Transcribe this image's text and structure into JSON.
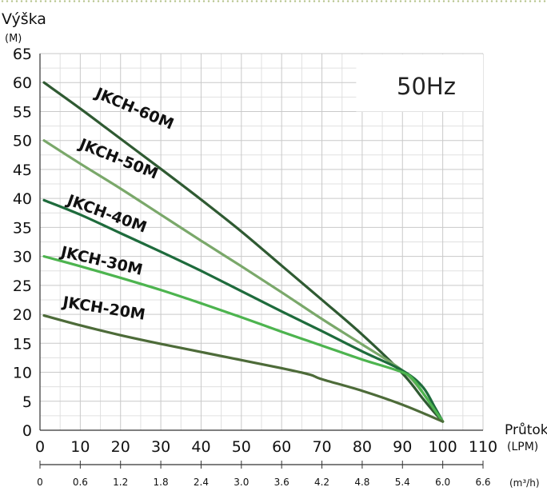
{
  "chart_data": {
    "type": "line",
    "ylabel": "Výška",
    "yunit": "(M)",
    "xlabel": "Průtok",
    "xunit": "(LPM)",
    "x2unit": "(m³/h)",
    "frequency_label": "50Hz",
    "xlim": [
      0,
      110
    ],
    "ylim": [
      0,
      65
    ],
    "xticks": [
      "0",
      "10",
      "20",
      "30",
      "40",
      "50",
      "60",
      "70",
      "80",
      "90",
      "100",
      "110"
    ],
    "yticks": [
      "0",
      "5",
      "10",
      "15",
      "20",
      "25",
      "30",
      "35",
      "40",
      "45",
      "50",
      "55",
      "60",
      "65"
    ],
    "x2ticks": [
      "0",
      "0.6",
      "1.2",
      "1.8",
      "2.4",
      "3.0",
      "3.6",
      "4.2",
      "4.8",
      "5.4",
      "6.0",
      "6.6"
    ],
    "grid": true,
    "series": [
      {
        "name": "JKCH-60M",
        "color": "#2f5a32",
        "x": [
          1,
          10,
          20,
          30,
          40,
          50,
          60,
          70,
          80,
          90,
          95,
          98,
          100
        ],
        "y": [
          60,
          55.5,
          50.3,
          45.1,
          39.8,
          34.3,
          28.4,
          22.5,
          16.5,
          9.8,
          5.5,
          3,
          1.5
        ]
      },
      {
        "name": "JKCH-50M",
        "color": "#7aa86a",
        "x": [
          1,
          10,
          20,
          30,
          40,
          50,
          60,
          70,
          80,
          90,
          95,
          98,
          100
        ],
        "y": [
          50,
          46,
          41.7,
          37.2,
          32.7,
          28.3,
          23.8,
          19.2,
          14.8,
          10.3,
          6.5,
          3.5,
          1.5
        ]
      },
      {
        "name": "JKCH-40M",
        "color": "#1e6b3c",
        "x": [
          1,
          10,
          20,
          30,
          40,
          50,
          60,
          70,
          80,
          90,
          95,
          98,
          100
        ],
        "y": [
          39.7,
          37.2,
          34,
          30.8,
          27.5,
          24,
          20.5,
          17.1,
          13.6,
          10.3,
          7.5,
          4,
          1.5
        ]
      },
      {
        "name": "JKCH-30M",
        "color": "#4db44f",
        "x": [
          1,
          10,
          20,
          30,
          40,
          50,
          60,
          70,
          80,
          90,
          93,
          96,
          100
        ],
        "y": [
          30,
          28.3,
          26.3,
          24.2,
          21.9,
          19.5,
          17,
          14.6,
          12.2,
          10,
          8.5,
          5.5,
          1.5
        ]
      },
      {
        "name": "JKCH-20M",
        "color": "#4d6b39",
        "x": [
          1,
          10,
          20,
          30,
          40,
          50,
          60,
          67,
          70,
          80,
          90,
          100
        ],
        "y": [
          19.8,
          18.1,
          16.4,
          14.9,
          13.5,
          12.1,
          10.7,
          9.6,
          8.8,
          6.8,
          4.4,
          1.5
        ]
      }
    ]
  }
}
